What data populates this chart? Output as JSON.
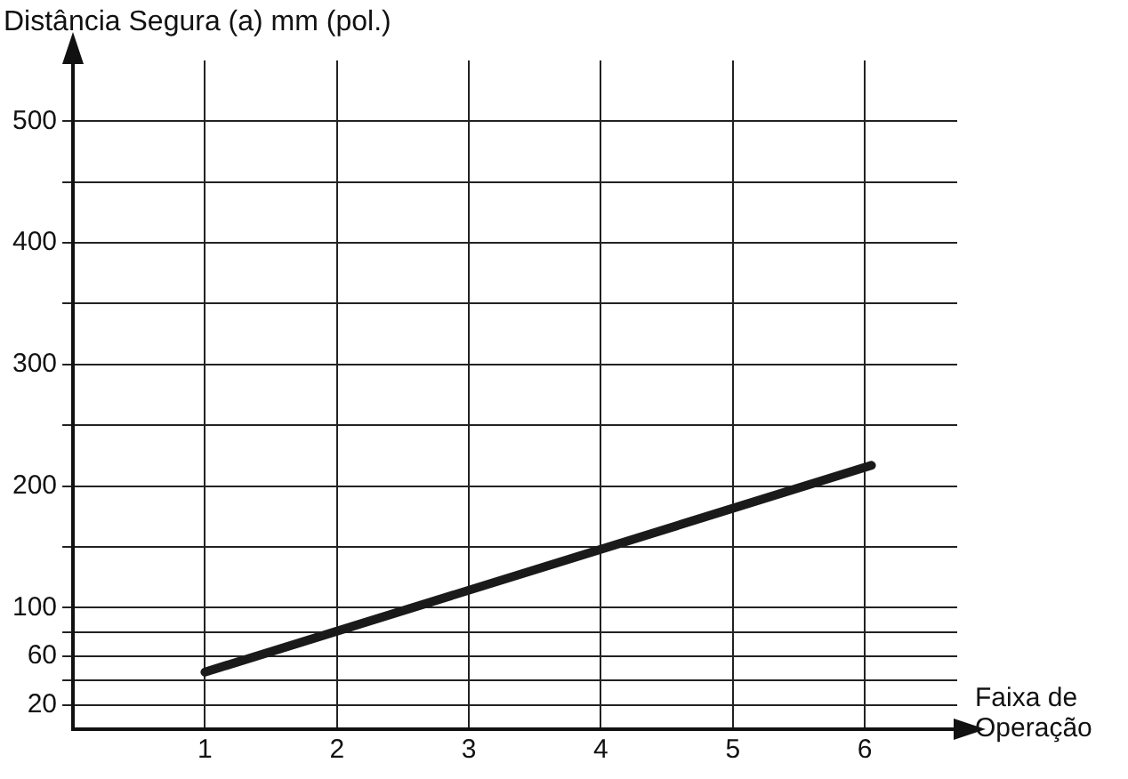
{
  "chart_data": {
    "type": "line",
    "ylabel": "Distância Segura (a) mm (pol.)",
    "xlabel": "Faixa de Operação",
    "x": [
      1,
      6.05
    ],
    "series": [
      {
        "color": "#1a1a1a",
        "values": [
          47,
          217
        ]
      }
    ],
    "xlim": [
      0,
      6.7
    ],
    "ylim": [
      0,
      550
    ],
    "xticks": [
      1,
      2,
      3,
      4,
      5,
      6
    ],
    "yticks": [
      20,
      {
        "value": 40,
        "label": null
      },
      60,
      {
        "value": 80,
        "label": null
      },
      100,
      {
        "value": 150,
        "label": null
      },
      200,
      {
        "value": 250,
        "label": null
      },
      300,
      {
        "value": 350,
        "label": null
      },
      400,
      {
        "value": 450,
        "label": null
      },
      500
    ],
    "grid": true,
    "legend": false,
    "line_style": "solid"
  }
}
